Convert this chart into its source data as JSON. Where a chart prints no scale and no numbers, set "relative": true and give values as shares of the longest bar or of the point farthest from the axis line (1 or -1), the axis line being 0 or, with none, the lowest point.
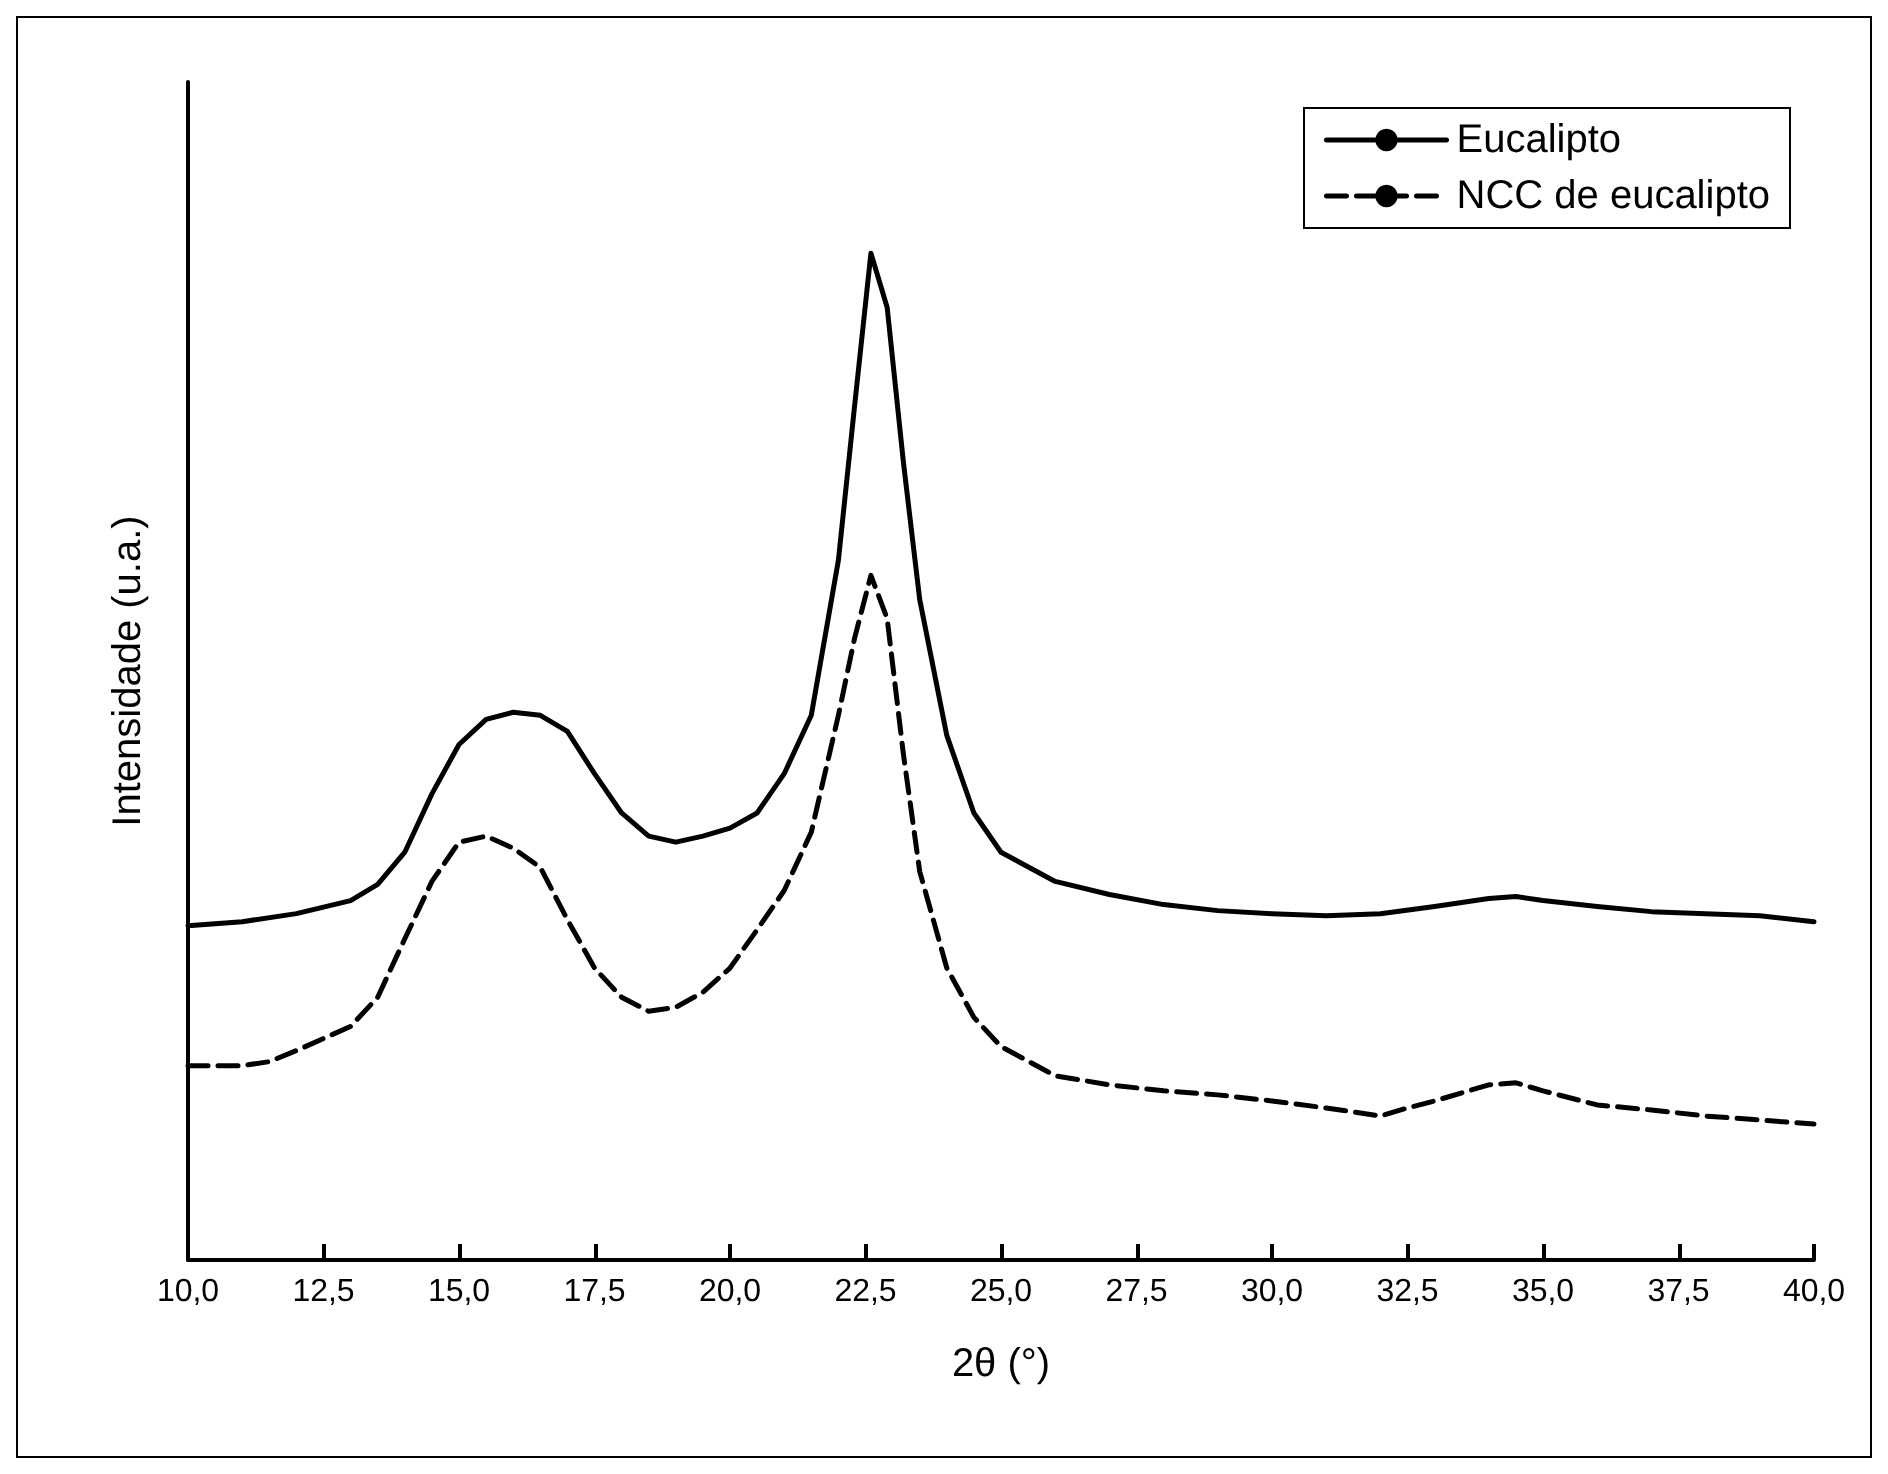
{
  "chart_data": {
    "type": "line",
    "relative": true,
    "xlabel": "2θ (°)",
    "ylabel": "Intensidade (u.a.)",
    "x": [
      10,
      11,
      12,
      13,
      13.5,
      14,
      14.5,
      15,
      15.5,
      16,
      16.5,
      17,
      17.5,
      18,
      18.5,
      19,
      19.5,
      20,
      20.5,
      21,
      21.5,
      22,
      22.3,
      22.6,
      22.9,
      23.2,
      23.5,
      24,
      24.5,
      25,
      26,
      27,
      28,
      29,
      30,
      31,
      32,
      33,
      34,
      34.5,
      35,
      36,
      37,
      38,
      39,
      40
    ],
    "series": [
      {
        "name": "Eucalipto",
        "color": "#000000",
        "line_style": "solid",
        "values": [
          0.332,
          0.336,
          0.344,
          0.357,
          0.373,
          0.405,
          0.463,
          0.512,
          0.537,
          0.544,
          0.541,
          0.525,
          0.483,
          0.444,
          0.421,
          0.415,
          0.421,
          0.429,
          0.444,
          0.483,
          0.541,
          0.695,
          0.849,
          1,
          0.946,
          0.792,
          0.656,
          0.521,
          0.444,
          0.405,
          0.376,
          0.363,
          0.353,
          0.347,
          0.344,
          0.342,
          0.344,
          0.351,
          0.359,
          0.361,
          0.357,
          0.351,
          0.346,
          0.344,
          0.342,
          0.336
        ]
      },
      {
        "name": "NCC de eucalipto",
        "color": "#000000",
        "line_style": "dashed",
        "x": [
          10,
          11,
          11.5,
          12,
          13,
          13.5,
          14,
          14.5,
          15,
          15.5,
          16,
          16.5,
          17,
          17.5,
          18,
          18.5,
          19,
          19.5,
          20,
          20.5,
          21,
          21.5,
          22,
          22.3,
          22.6,
          22.9,
          23.2,
          23.5,
          24,
          24.5,
          25,
          26,
          27,
          28,
          29,
          30,
          31,
          32,
          32.5,
          33,
          34,
          34.5,
          35,
          36,
          37,
          38,
          39,
          40
        ],
        "values": [
          0.193,
          0.193,
          0.197,
          0.208,
          0.232,
          0.261,
          0.319,
          0.376,
          0.415,
          0.421,
          0.409,
          0.39,
          0.338,
          0.29,
          0.261,
          0.247,
          0.251,
          0.266,
          0.29,
          0.328,
          0.367,
          0.425,
          0.541,
          0.618,
          0.68,
          0.637,
          0.502,
          0.386,
          0.29,
          0.241,
          0.212,
          0.183,
          0.174,
          0.168,
          0.164,
          0.158,
          0.151,
          0.143,
          0.151,
          0.158,
          0.174,
          0.176,
          0.168,
          0.154,
          0.149,
          0.143,
          0.139,
          0.135
        ]
      }
    ],
    "xlim": [
      10,
      40
    ],
    "xticks": [
      {
        "value": 10,
        "label": "10,0"
      },
      {
        "value": 12.5,
        "label": "12,5"
      },
      {
        "value": 15,
        "label": "15,0"
      },
      {
        "value": 17.5,
        "label": "17,5"
      },
      {
        "value": 20,
        "label": "20,0"
      },
      {
        "value": 22.5,
        "label": "22,5"
      },
      {
        "value": 25,
        "label": "25,0"
      },
      {
        "value": 27.5,
        "label": "27,5"
      },
      {
        "value": 30,
        "label": "30,0"
      },
      {
        "value": 32.5,
        "label": "32,5"
      },
      {
        "value": 35,
        "label": "35,0"
      },
      {
        "value": 37.5,
        "label": "37,5"
      },
      {
        "value": 40,
        "label": "40,0"
      }
    ],
    "legend": "top right",
    "grid": false
  }
}
